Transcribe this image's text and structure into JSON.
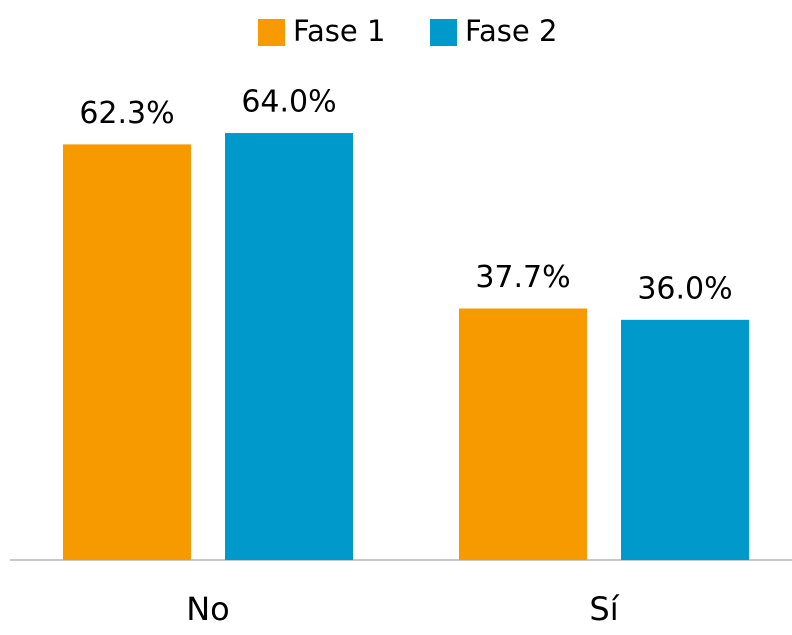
{
  "chart_data": {
    "type": "bar",
    "categories": [
      "No",
      "Sí"
    ],
    "series": [
      {
        "name": "Fase 1",
        "color": "#f79a00",
        "values": [
          62.3,
          37.7
        ],
        "value_labels": [
          "62.3%",
          "37.7%"
        ]
      },
      {
        "name": "Fase 2",
        "color": "#0099cc",
        "values": [
          64.0,
          36.0
        ],
        "value_labels": [
          "64.0%",
          "36.0%"
        ]
      }
    ],
    "ylim": [
      0,
      70
    ],
    "legend": "top"
  }
}
